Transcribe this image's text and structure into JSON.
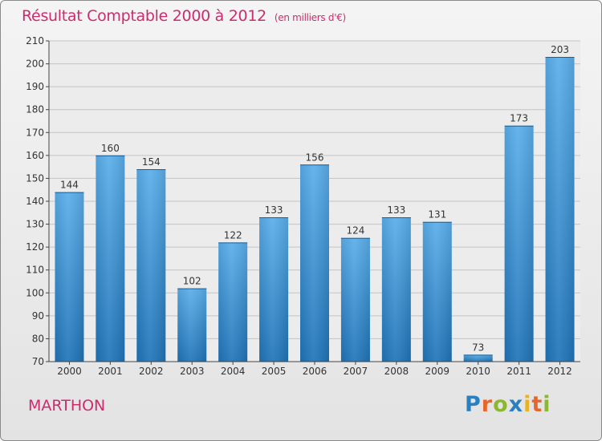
{
  "title": "Résultat Comptable 2000 à 2012",
  "subtitle": "(en milliers d'€)",
  "location": "MARTHON",
  "logo": {
    "text": "Proxiti",
    "letters": [
      "P",
      "r",
      "o",
      "x",
      "i",
      "t",
      "i"
    ],
    "colors": [
      "#2a7fc0",
      "#e8662a",
      "#8bb830",
      "#2a7fc0",
      "#e8b322",
      "#e8662a",
      "#8bb830"
    ]
  },
  "colors": {
    "bar_top": "#5aaeea",
    "bar_bottom": "#1f74b8",
    "title": "#cc2c6e",
    "axis": "#333333"
  },
  "chart_data": {
    "type": "bar",
    "title": "Résultat Comptable 2000 à 2012",
    "subtitle": "(en milliers d'€)",
    "categories": [
      "2000",
      "2001",
      "2002",
      "2003",
      "2004",
      "2005",
      "2006",
      "2007",
      "2008",
      "2009",
      "2010",
      "2011",
      "2012"
    ],
    "values": [
      144,
      160,
      154,
      102,
      122,
      133,
      156,
      124,
      133,
      131,
      73,
      173,
      203
    ],
    "ylim": [
      70,
      210
    ],
    "yticks": [
      70,
      80,
      90,
      100,
      110,
      120,
      130,
      140,
      150,
      160,
      170,
      180,
      190,
      200,
      210
    ],
    "grid": true,
    "xlabel": "",
    "ylabel": ""
  }
}
